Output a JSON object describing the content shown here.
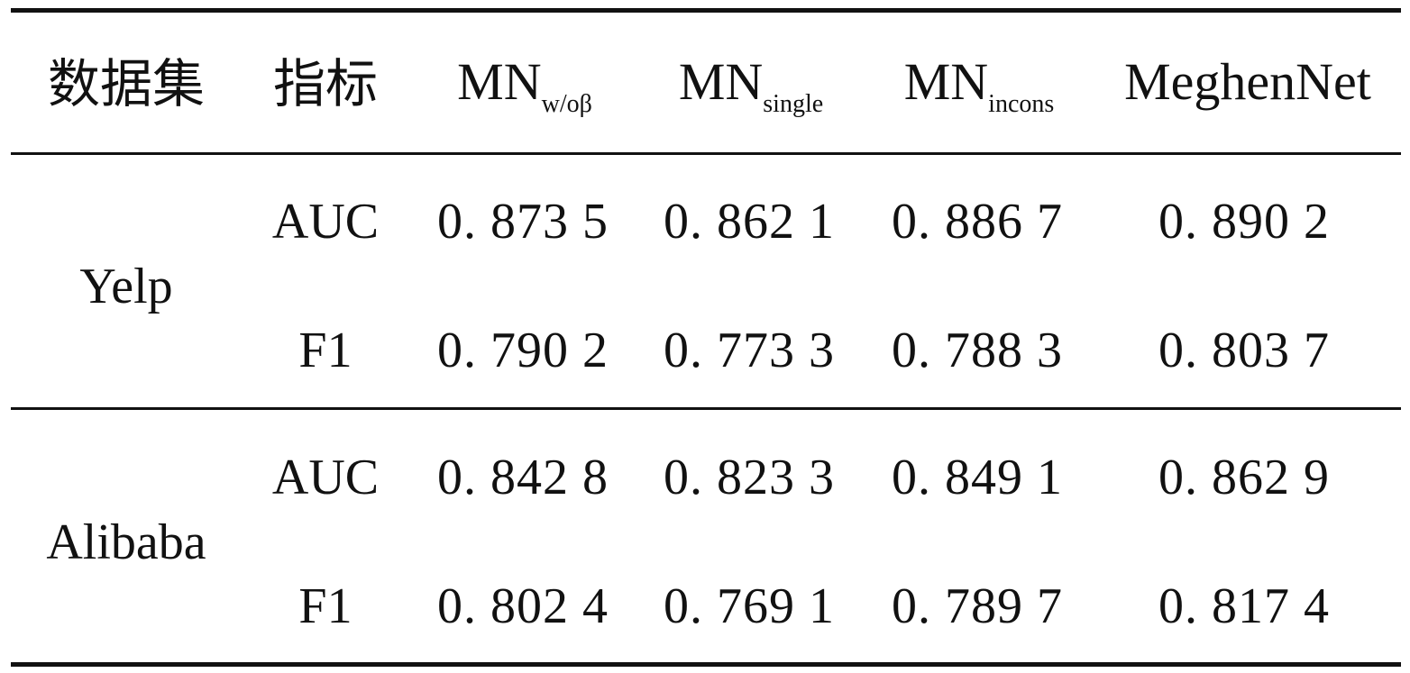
{
  "table": {
    "headers": {
      "dataset": "数据集",
      "metric": "指标",
      "col1_main": "MN",
      "col1_sub": "w/oβ",
      "col2_main": "MN",
      "col2_sub": "single",
      "col3_main": "MN",
      "col3_sub": "incons",
      "col4": "MeghenNet"
    },
    "groups": [
      {
        "dataset": "Yelp",
        "rows": [
          {
            "metric": "AUC",
            "values": [
              "0. 873 5",
              "0. 862 1",
              "0. 886 7",
              "0. 890 2"
            ]
          },
          {
            "metric": "F1",
            "values": [
              "0. 790 2",
              "0. 773 3",
              "0. 788 3",
              "0. 803 7"
            ]
          }
        ]
      },
      {
        "dataset": "Alibaba",
        "rows": [
          {
            "metric": "AUC",
            "values": [
              "0. 842 8",
              "0. 823 3",
              "0. 849 1",
              "0. 862 9"
            ]
          },
          {
            "metric": "F1",
            "values": [
              "0. 802 4",
              "0. 769 1",
              "0. 789 7",
              "0. 817 4"
            ]
          }
        ]
      }
    ]
  }
}
